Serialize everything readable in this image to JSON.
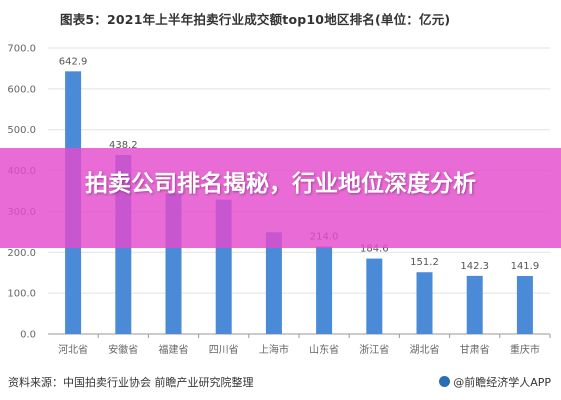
{
  "chart_data": {
    "type": "bar",
    "title": "图表5：2021年上半年拍卖行业成交额top10地区排名(单位：亿元)",
    "xlabel": "",
    "ylabel": "",
    "ylim": [
      0,
      700
    ],
    "yticks": [
      "0.0",
      "100.0",
      "200.0",
      "300.0",
      "400.0",
      "500.0",
      "600.0",
      "700.0"
    ],
    "categories": [
      "河北省",
      "安徽省",
      "福建省",
      "四川省",
      "上海市",
      "山东省",
      "浙江省",
      "湖北省",
      "甘肃省",
      "重庆市"
    ],
    "values": [
      642.9,
      438.2,
      344.0,
      329.0,
      249.0,
      214.0,
      184.6,
      151.2,
      142.3,
      141.9
    ],
    "data_labels": [
      "642.9",
      "438.2",
      "",
      "",
      "",
      "214.0",
      "184.6",
      "151.2",
      "142.3",
      "141.9"
    ],
    "grid": "horizontal",
    "legend": "none",
    "bar_color": "#4a8ad6"
  },
  "banner": {
    "text": "拍卖公司排名揭秘，行业地位深度分析",
    "color": "#e44ccd"
  },
  "footer": {
    "source": "资料来源：中国拍卖行业协会 前瞻产业研究院整理",
    "app": "@前瞻经济学人APP"
  }
}
